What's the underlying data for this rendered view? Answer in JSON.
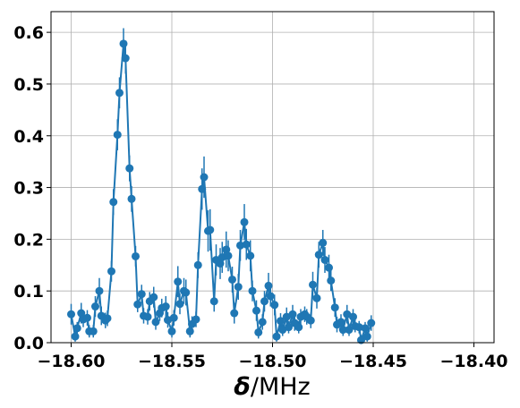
{
  "chart_data": {
    "type": "scatter",
    "xlabel_symbol": "δ",
    "xlabel_unit": "/MHz",
    "ylabel": "",
    "title": "",
    "xlim": [
      -18.61,
      -18.39
    ],
    "ylim": [
      0,
      0.64
    ],
    "grid": true,
    "color": "#1f77b4",
    "x_ticks": [
      -18.6,
      -18.55,
      -18.5,
      -18.45,
      -18.4
    ],
    "x_tick_labels": [
      "−18.60",
      "−18.55",
      "−18.50",
      "−18.45",
      "−18.40"
    ],
    "y_ticks": [
      0.0,
      0.1,
      0.2,
      0.3,
      0.4,
      0.5,
      0.6
    ],
    "y_tick_labels": [
      "0.0",
      "0.1",
      "0.2",
      "0.3",
      "0.4",
      "0.5",
      "0.6"
    ],
    "series": [
      {
        "marker": "circle",
        "line": true,
        "error_bars": true,
        "points": [
          [
            -18.6,
            0.055,
            0.02
          ],
          [
            -18.598,
            0.012,
            0.01
          ],
          [
            -18.597,
            0.028,
            0.012
          ],
          [
            -18.595,
            0.057,
            0.02
          ],
          [
            -18.594,
            0.045,
            0.015
          ],
          [
            -18.592,
            0.048,
            0.015
          ],
          [
            -18.591,
            0.022,
            0.012
          ],
          [
            -18.589,
            0.022,
            0.012
          ],
          [
            -18.588,
            0.07,
            0.02
          ],
          [
            -18.586,
            0.1,
            0.025
          ],
          [
            -18.585,
            0.052,
            0.018
          ],
          [
            -18.583,
            0.043,
            0.015
          ],
          [
            -18.582,
            0.047,
            0.015
          ],
          [
            -18.58,
            0.138,
            0.02
          ],
          [
            -18.579,
            0.272,
            0.025
          ],
          [
            -18.577,
            0.402,
            0.03
          ],
          [
            -18.576,
            0.483,
            0.03
          ],
          [
            -18.574,
            0.578,
            0.03
          ],
          [
            -18.573,
            0.55,
            0.03
          ],
          [
            -18.571,
            0.337,
            0.025
          ],
          [
            -18.57,
            0.278,
            0.025
          ],
          [
            -18.568,
            0.167,
            0.02
          ],
          [
            -18.567,
            0.074,
            0.015
          ],
          [
            -18.565,
            0.094,
            0.018
          ],
          [
            -18.564,
            0.052,
            0.015
          ],
          [
            -18.562,
            0.05,
            0.015
          ],
          [
            -18.561,
            0.08,
            0.018
          ],
          [
            -18.559,
            0.088,
            0.02
          ],
          [
            -18.558,
            0.04,
            0.015
          ],
          [
            -18.556,
            0.057,
            0.015
          ],
          [
            -18.555,
            0.067,
            0.018
          ],
          [
            -18.553,
            0.07,
            0.02
          ],
          [
            -18.552,
            0.044,
            0.015
          ],
          [
            -18.55,
            0.022,
            0.012
          ],
          [
            -18.549,
            0.048,
            0.015
          ],
          [
            -18.547,
            0.118,
            0.03
          ],
          [
            -18.546,
            0.075,
            0.02
          ],
          [
            -18.544,
            0.1,
            0.025
          ],
          [
            -18.543,
            0.097,
            0.025
          ],
          [
            -18.541,
            0.022,
            0.012
          ],
          [
            -18.54,
            0.036,
            0.015
          ],
          [
            -18.538,
            0.045,
            0.015
          ],
          [
            -18.537,
            0.15,
            0.025
          ],
          [
            -18.535,
            0.297,
            0.04
          ],
          [
            -18.534,
            0.32,
            0.04
          ],
          [
            -18.532,
            0.216,
            0.04
          ],
          [
            -18.531,
            0.218,
            0.04
          ],
          [
            -18.529,
            0.08,
            0.02
          ],
          [
            -18.528,
            0.16,
            0.03
          ],
          [
            -18.526,
            0.153,
            0.03
          ],
          [
            -18.525,
            0.165,
            0.03
          ],
          [
            -18.523,
            0.18,
            0.035
          ],
          [
            -18.522,
            0.168,
            0.03
          ],
          [
            -18.52,
            0.122,
            0.025
          ],
          [
            -18.519,
            0.057,
            0.02
          ],
          [
            -18.517,
            0.108,
            0.025
          ],
          [
            -18.516,
            0.188,
            0.03
          ],
          [
            -18.514,
            0.233,
            0.035
          ],
          [
            -18.513,
            0.19,
            0.03
          ],
          [
            -18.511,
            0.168,
            0.03
          ],
          [
            -18.51,
            0.1,
            0.02
          ],
          [
            -18.508,
            0.062,
            0.02
          ],
          [
            -18.507,
            0.02,
            0.012
          ],
          [
            -18.505,
            0.04,
            0.015
          ],
          [
            -18.504,
            0.08,
            0.02
          ],
          [
            -18.502,
            0.11,
            0.025
          ],
          [
            -18.501,
            0.09,
            0.02
          ],
          [
            -18.499,
            0.073,
            0.02
          ],
          [
            -18.498,
            0.012,
            0.01
          ],
          [
            -18.496,
            0.042,
            0.015
          ],
          [
            -18.495,
            0.025,
            0.012
          ],
          [
            -18.493,
            0.05,
            0.018
          ],
          [
            -18.492,
            0.03,
            0.012
          ],
          [
            -18.49,
            0.055,
            0.018
          ],
          [
            -18.489,
            0.038,
            0.015
          ],
          [
            -18.487,
            0.03,
            0.012
          ],
          [
            -18.486,
            0.05,
            0.015
          ],
          [
            -18.484,
            0.055,
            0.015
          ],
          [
            -18.483,
            0.05,
            0.015
          ],
          [
            -18.481,
            0.043,
            0.015
          ],
          [
            -18.48,
            0.112,
            0.025
          ],
          [
            -18.478,
            0.086,
            0.02
          ],
          [
            -18.477,
            0.17,
            0.025
          ],
          [
            -18.475,
            0.193,
            0.025
          ],
          [
            -18.474,
            0.16,
            0.025
          ],
          [
            -18.472,
            0.145,
            0.025
          ],
          [
            -18.471,
            0.12,
            0.02
          ],
          [
            -18.469,
            0.068,
            0.018
          ],
          [
            -18.468,
            0.035,
            0.015
          ],
          [
            -18.466,
            0.04,
            0.015
          ],
          [
            -18.465,
            0.025,
            0.012
          ],
          [
            -18.463,
            0.055,
            0.018
          ],
          [
            -18.462,
            0.025,
            0.012
          ],
          [
            -18.46,
            0.05,
            0.015
          ],
          [
            -18.459,
            0.032,
            0.012
          ],
          [
            -18.457,
            0.03,
            0.012
          ],
          [
            -18.456,
            0.005,
            0.01
          ],
          [
            -18.454,
            0.028,
            0.012
          ],
          [
            -18.453,
            0.012,
            0.01
          ],
          [
            -18.451,
            0.038,
            0.015
          ]
        ]
      }
    ]
  }
}
